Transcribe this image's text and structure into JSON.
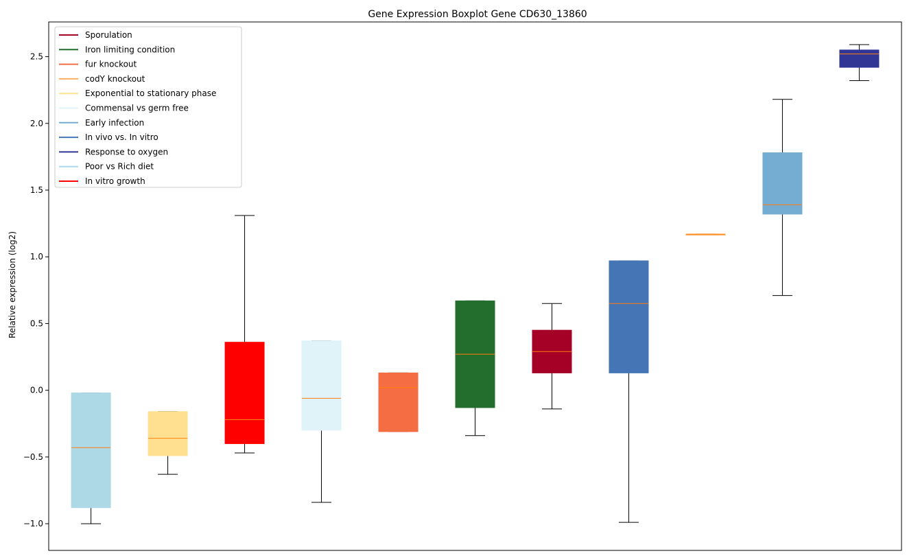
{
  "chart_data": {
    "type": "boxplot",
    "title": "Gene Expression Boxplot Gene CD630_13860",
    "ylabel": "Relative expression (log2)",
    "xlabel": "",
    "ylim": [
      -1.2,
      2.76
    ],
    "yticks": [
      -1.0,
      -0.5,
      0.0,
      0.5,
      1.0,
      1.5,
      2.0,
      2.5
    ],
    "ytick_labels": [
      "−1.0",
      "−0.5",
      "0.0",
      "0.5",
      "1.0",
      "1.5",
      "2.0",
      "2.5"
    ],
    "grid": false,
    "legend_position": "top-left",
    "median_color": "#ff7f0e",
    "legend": [
      {
        "name": "Sporulation",
        "color": "#a50026"
      },
      {
        "name": "Iron limiting condition",
        "color": "#236d2d"
      },
      {
        "name": "fur knockout",
        "color": "#f46d43"
      },
      {
        "name": "codY knockout",
        "color": "#fdae61"
      },
      {
        "name": "Exponential to stationary phase",
        "color": "#fee090"
      },
      {
        "name": "Commensal vs germ free",
        "color": "#e0f3f8"
      },
      {
        "name": "Early infection",
        "color": "#74add1"
      },
      {
        "name": "In vivo vs. In vitro",
        "color": "#4575b4"
      },
      {
        "name": "Response to oxygen",
        "color": "#313695"
      },
      {
        "name": "Poor vs Rich diet",
        "color": "#abd9e9"
      },
      {
        "name": "In vitro growth",
        "color": "#ff0000"
      }
    ],
    "boxes": [
      {
        "group": "Poor vs Rich diet",
        "color": "#add8e6",
        "whisker_low": -1.0,
        "q1": -0.88,
        "median": -0.43,
        "q3": -0.02,
        "whisker_high": -0.02
      },
      {
        "group": "Exponential to stationary phase",
        "color": "#fee090",
        "whisker_low": -0.63,
        "q1": -0.49,
        "median": -0.36,
        "q3": -0.16,
        "whisker_high": -0.16
      },
      {
        "group": "In vitro growth",
        "color": "#ff0000",
        "whisker_low": -0.47,
        "q1": -0.4,
        "median": -0.22,
        "q3": 0.36,
        "whisker_high": 1.31
      },
      {
        "group": "Commensal vs germ free",
        "color": "#e0f3f8",
        "whisker_low": -0.84,
        "q1": -0.3,
        "median": -0.06,
        "q3": 0.37,
        "whisker_high": 0.37
      },
      {
        "group": "fur knockout",
        "color": "#f46d43",
        "whisker_low": -0.31,
        "q1": -0.31,
        "median": 0.02,
        "q3": 0.13,
        "whisker_high": 0.13
      },
      {
        "group": "Iron limiting condition",
        "color": "#236d2d",
        "whisker_low": -0.34,
        "q1": -0.13,
        "median": 0.27,
        "q3": 0.67,
        "whisker_high": 0.67
      },
      {
        "group": "Sporulation",
        "color": "#a50026",
        "whisker_low": -0.14,
        "q1": 0.13,
        "median": 0.29,
        "q3": 0.45,
        "whisker_high": 0.65
      },
      {
        "group": "In vivo vs. In vitro",
        "color": "#4575b4",
        "whisker_low": -0.99,
        "q1": 0.13,
        "median": 0.65,
        "q3": 0.97,
        "whisker_high": 0.97
      },
      {
        "group": "codY knockout",
        "color": "#fdae61",
        "whisker_low": 1.17,
        "q1": 1.17,
        "median": 1.17,
        "q3": 1.17,
        "whisker_high": 1.17
      },
      {
        "group": "Early infection",
        "color": "#74add1",
        "whisker_low": 0.71,
        "q1": 1.32,
        "median": 1.39,
        "q3": 1.78,
        "whisker_high": 2.18
      },
      {
        "group": "Response to oxygen",
        "color": "#313695",
        "whisker_low": 2.32,
        "q1": 2.42,
        "median": 2.52,
        "q3": 2.55,
        "whisker_high": 2.59
      }
    ]
  }
}
